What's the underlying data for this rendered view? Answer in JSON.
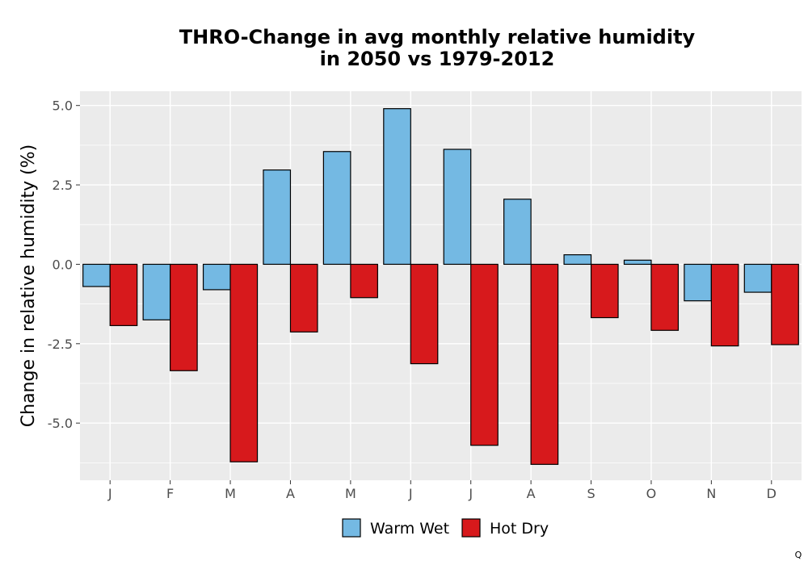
{
  "chart_data": {
    "type": "bar",
    "title_line1": "THRO-Change in avg monthly relative humidity",
    "title_line2": "in 2050 vs 1979-2012",
    "xlabel": "",
    "ylabel": "Change in relative humidity (%)",
    "categories": [
      "J",
      "F",
      "M",
      "A",
      "M",
      "J",
      "J",
      "A",
      "S",
      "O",
      "N",
      "D"
    ],
    "series": [
      {
        "name": "Warm Wet",
        "color": "#74b9e3",
        "values": [
          -0.7,
          -1.75,
          -0.8,
          2.97,
          3.55,
          4.9,
          3.62,
          2.05,
          0.3,
          0.13,
          -1.15,
          -0.88
        ]
      },
      {
        "name": "Hot Dry",
        "color": "#d7191c",
        "values": [
          -1.93,
          -3.35,
          -6.22,
          -2.13,
          -1.05,
          -3.13,
          -5.7,
          -6.3,
          -1.68,
          -2.08,
          -2.57,
          -2.53
        ]
      }
    ],
    "ylim": [
      -6.8,
      5.45
    ],
    "yticks": [
      5.0,
      2.5,
      0.0,
      -2.5,
      -5.0
    ],
    "ytick_labels": [
      "5.0",
      "2.5",
      "0.0",
      "-2.5",
      "-5.0"
    ],
    "grid": true,
    "legend_position": "bottom"
  },
  "corner_mark": "Q"
}
